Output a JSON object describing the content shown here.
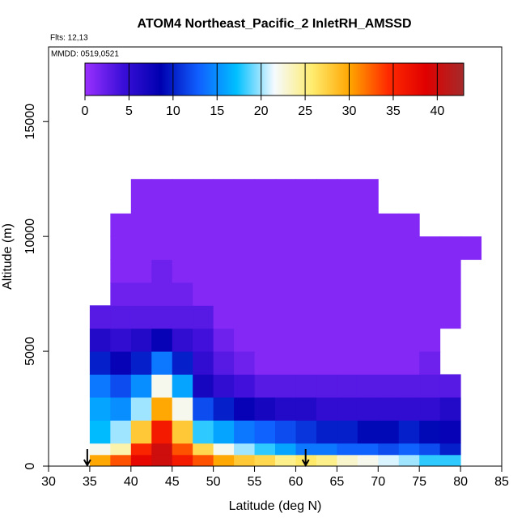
{
  "chart_data": {
    "type": "heatmap",
    "title": "ATOM4 Northeast_Pacific_2 InletRH_AMSSD",
    "annotations": [
      "Flts: 12,13",
      "MMDD: 0519,0521"
    ],
    "xlabel": "Latitude (deg N)",
    "ylabel": "Altitude (m)",
    "xlim": [
      30,
      85
    ],
    "xticks": [
      30,
      35,
      40,
      45,
      50,
      55,
      60,
      65,
      70,
      75,
      80,
      85
    ],
    "ylim": [
      0,
      18250
    ],
    "yticks": [
      0,
      5000,
      10000,
      15000
    ],
    "zlim": [
      0,
      43
    ],
    "zticks": [
      0,
      5,
      10,
      15,
      20,
      25,
      30,
      35,
      40
    ],
    "colorscale": [
      "#9b30ff",
      "#3a0fd8",
      "#0000b0",
      "#1060ff",
      "#00bfff",
      "#f5faff",
      "#ffec6e",
      "#ffa500",
      "#ff2a00",
      "#e00000",
      "#a52a2a"
    ],
    "x": [
      35,
      37.5,
      40,
      42.5,
      45,
      47.5,
      50,
      52.5,
      55,
      57.5,
      60,
      62.5,
      65,
      67.5,
      70,
      72.5,
      75,
      77.5,
      80,
      82.5
    ],
    "y": [
      0,
      500,
      1000,
      2000,
      3000,
      4000,
      5000,
      6000,
      7000,
      8000,
      9000,
      10000,
      11000,
      12500
    ],
    "z": [
      [
        30,
        33,
        38,
        40,
        36,
        33,
        30,
        28,
        27,
        25,
        26,
        25,
        23,
        22,
        21,
        20,
        18,
        18,
        null
      ],
      [
        22,
        24,
        35,
        40,
        33,
        27,
        22,
        20,
        18,
        16,
        14,
        14,
        13,
        13,
        12,
        13,
        12,
        10,
        null
      ],
      [
        17,
        20,
        28,
        36,
        28,
        18,
        16,
        14,
        13,
        12,
        11,
        10,
        10,
        9,
        9,
        10,
        9,
        8,
        null
      ],
      [
        16,
        15,
        20,
        30,
        22,
        12,
        10,
        8,
        7,
        6,
        6,
        5,
        5,
        5,
        5,
        5,
        5,
        6,
        null
      ],
      [
        14,
        12,
        15,
        22,
        16,
        7,
        5,
        4,
        3,
        3,
        3,
        3,
        3,
        3,
        3,
        3,
        3,
        3,
        null
      ],
      [
        10,
        8,
        10,
        14,
        10,
        5,
        3,
        2,
        1,
        1,
        1,
        1,
        1,
        1,
        1,
        1,
        2,
        null,
        null
      ],
      [
        6,
        5,
        6,
        8,
        5,
        4,
        2,
        1,
        1,
        1,
        1,
        1,
        1,
        1,
        1,
        1,
        1,
        null,
        null
      ],
      [
        3,
        3,
        3,
        3,
        3,
        3,
        1,
        1,
        1,
        1,
        1,
        1,
        1,
        1,
        1,
        1,
        1,
        1,
        null
      ],
      [
        null,
        2,
        2,
        2,
        2,
        1,
        1,
        1,
        1,
        1,
        1,
        1,
        1,
        1,
        1,
        1,
        1,
        1,
        null
      ],
      [
        null,
        1,
        1,
        2,
        1,
        1,
        1,
        1,
        1,
        1,
        1,
        1,
        1,
        1,
        1,
        1,
        1,
        1,
        null
      ],
      [
        null,
        1,
        1,
        1,
        1,
        1,
        1,
        1,
        1,
        1,
        1,
        1,
        1,
        1,
        1,
        1,
        1,
        1,
        1
      ],
      [
        null,
        1,
        1,
        1,
        1,
        1,
        1,
        1,
        1,
        1,
        1,
        1,
        1,
        1,
        1,
        1,
        null,
        null,
        null
      ],
      [
        null,
        null,
        1,
        1,
        1,
        1,
        1,
        1,
        1,
        1,
        1,
        1,
        1,
        1,
        null,
        null,
        null,
        null,
        null
      ]
    ],
    "arrows": [
      34.7,
      61.2
    ]
  }
}
